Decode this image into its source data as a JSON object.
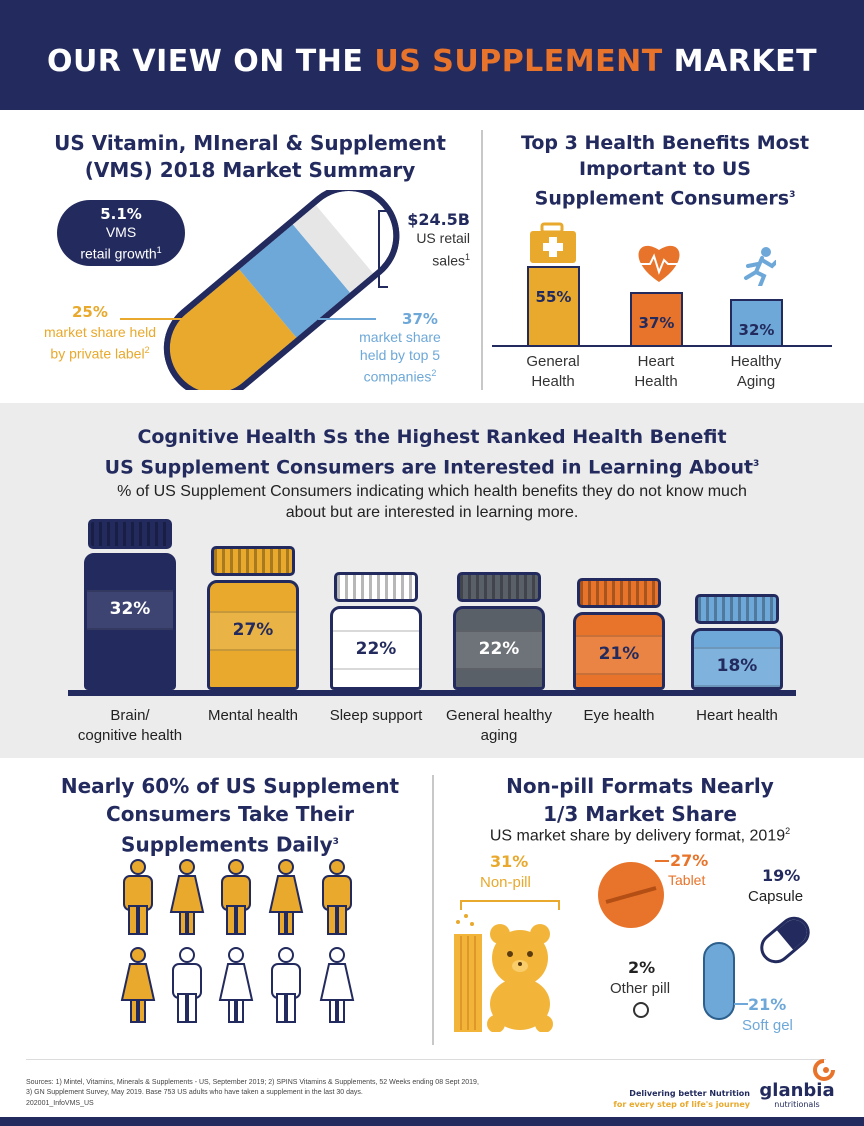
{
  "header": {
    "title_pre": "OUR VIEW ON THE ",
    "title_highlight": "US SUPPLEMENT",
    "title_post": " MARKET"
  },
  "vms": {
    "title_line1": "US Vitamin, MIneral & Supplement",
    "title_line2": "(VMS) 2018 Market Summary",
    "growth_value": "5.1%",
    "growth_line1": "VMS",
    "growth_line2": "retail growth",
    "growth_sup": "1",
    "sales_value": "$24.5B",
    "sales_line1": "US retail",
    "sales_line2": "sales",
    "sales_sup": "1",
    "private_value": "25%",
    "private_line1": "market share held",
    "private_line2": "by private label",
    "private_sup": "2",
    "top5_value": "37%",
    "top5_line1": "market share",
    "top5_line2": "held by top 5",
    "top5_line3": "companies",
    "top5_sup": "2"
  },
  "benefits": {
    "title_line1": "Top 3 Health Benefits Most",
    "title_line2": "Important to US",
    "title_line3": "Supplement Consumers",
    "title_sup": "3",
    "items": [
      {
        "value": "55%",
        "line1": "General",
        "line2": "Health",
        "icon": "first-aid-kit-icon"
      },
      {
        "value": "37%",
        "line1": "Heart",
        "line2": "Health",
        "icon": "heartbeat-icon"
      },
      {
        "value": "32%",
        "line1": "Healthy",
        "line2": "Aging",
        "icon": "running-person-icon"
      }
    ]
  },
  "cognitive": {
    "title_line1": "Cognitive Health Ss the Highest Ranked Health Benefit",
    "title_line2": "US Supplement Consumers are Interested in Learning About",
    "title_sup": "3",
    "subtitle_line1": "% of US Supplement Consumers indicating which health benefits they do not know much",
    "subtitle_line2": "about but are interested in learning more.",
    "jars": [
      {
        "value": "32%",
        "line1": "Brain/",
        "line2": "cognitive health"
      },
      {
        "value": "27%",
        "line1": "Mental health",
        "line2": ""
      },
      {
        "value": "22%",
        "line1": "Sleep support",
        "line2": ""
      },
      {
        "value": "22%",
        "line1": "General healthy",
        "line2": "aging"
      },
      {
        "value": "21%",
        "line1": "Eye health",
        "line2": ""
      },
      {
        "value": "18%",
        "line1": "Heart health",
        "line2": ""
      }
    ],
    "colors": [
      "#232b5e",
      "#e8a92c",
      "#ffffff",
      "#5a6068",
      "#e8742b",
      "#6ea8d8"
    ]
  },
  "daily": {
    "title_line1": "Nearly 60% of US Supplement",
    "title_line2": "Consumers Take Their",
    "title_line3": "Supplements Daily",
    "title_sup": "3",
    "filled_people": 6,
    "total_people": 10
  },
  "formats": {
    "title_line1": "Non-pill Formats Nearly",
    "title_line2": "1/3 Market Share",
    "subtitle": "US market share by delivery format, 2019",
    "subtitle_sup": "2",
    "nonpill_value": "31%",
    "nonpill_label": "Non-pill",
    "tablet_value": "27%",
    "tablet_label": "Tablet",
    "capsule_value": "19%",
    "capsule_label": "Capsule",
    "other_value": "2%",
    "other_label": "Other pill",
    "softgel_value": "21%",
    "softgel_label": "Soft gel"
  },
  "footer": {
    "sources_line1": "Sources: 1) Mintel, Vitamins, Minerals & Supplements - US, September 2019; 2) SPINS Vitamins & Supplements, 52 Weeks ending 08 Sept 2019,",
    "sources_line2": "3) GN Supplement Survey, May 2019. Base 753 US adults who have taken a supplement in the last 30 days.",
    "code": "202001_InfoVMS_US",
    "tagline1": "Delivering better Nutrition",
    "tagline2": "for every step of life's journey",
    "brand": "glanbia",
    "brand_sub": "nutritionals"
  }
}
